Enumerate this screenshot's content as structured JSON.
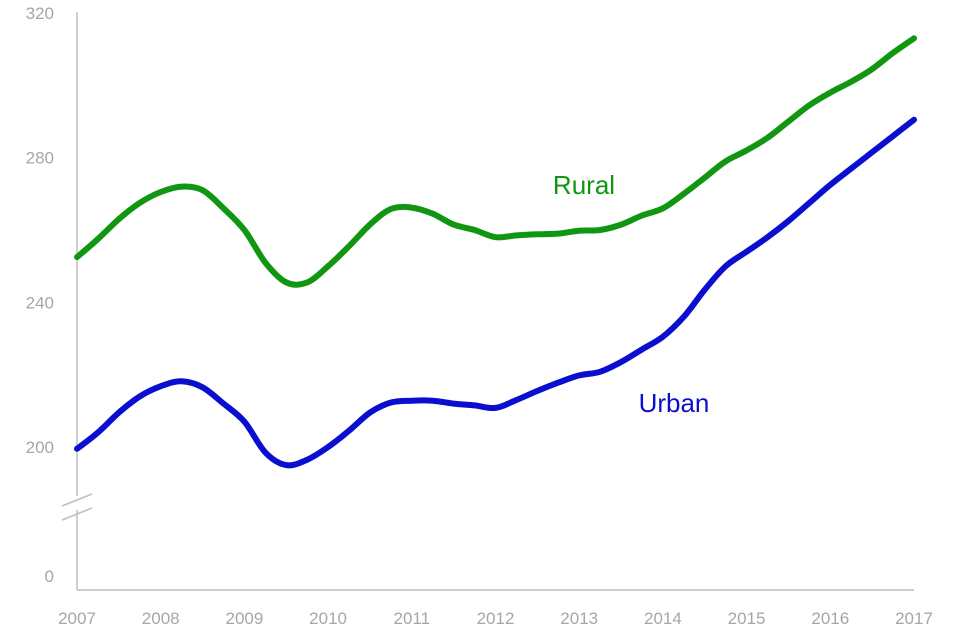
{
  "chart_data": {
    "type": "line",
    "title": "",
    "xlabel": "",
    "ylabel": "",
    "x_ticks": [
      "2007",
      "2008",
      "2009",
      "2010",
      "2011",
      "2012",
      "2013",
      "2014",
      "2015",
      "2016",
      "2017"
    ],
    "y_ticks": [
      "0",
      "200",
      "240",
      "280",
      "320"
    ],
    "ylim": [
      200,
      320
    ],
    "y_axis_break": true,
    "grid": false,
    "legend": "inline labels",
    "series": [
      {
        "name": "Rural",
        "color": "#119611",
        "x": [
          2007.0,
          2007.25,
          2007.5,
          2007.75,
          2008.0,
          2008.25,
          2008.5,
          2008.75,
          2009.0,
          2009.25,
          2009.5,
          2009.75,
          2010.0,
          2010.25,
          2010.5,
          2010.75,
          2011.0,
          2011.25,
          2011.5,
          2011.75,
          2012.0,
          2012.25,
          2012.5,
          2012.75,
          2013.0,
          2013.25,
          2013.5,
          2013.75,
          2014.0,
          2014.25,
          2014.5,
          2014.75,
          2015.0,
          2015.25,
          2015.5,
          2015.75,
          2016.0,
          2016.25,
          2016.5,
          2016.75,
          2017.0
        ],
        "y": [
          252.5,
          257.5,
          263,
          267.5,
          270.5,
          272,
          271,
          266,
          260,
          251,
          245.5,
          245.5,
          250,
          255.5,
          261.5,
          265.8,
          266.2,
          264.5,
          261.5,
          260,
          258,
          258.5,
          258.8,
          259,
          259.8,
          260,
          261.5,
          264,
          266,
          270,
          274.5,
          279,
          282,
          285.5,
          290,
          294.5,
          298,
          301,
          304.5,
          309,
          313
        ]
      },
      {
        "name": "Urban",
        "color": "#0a0fcf",
        "x": [
          2007.0,
          2007.25,
          2007.5,
          2007.75,
          2008.0,
          2008.25,
          2008.5,
          2008.75,
          2009.0,
          2009.25,
          2009.5,
          2009.75,
          2010.0,
          2010.25,
          2010.5,
          2010.75,
          2011.0,
          2011.25,
          2011.5,
          2011.75,
          2012.0,
          2012.25,
          2012.5,
          2012.75,
          2013.0,
          2013.25,
          2013.5,
          2013.75,
          2014.0,
          2014.25,
          2014.5,
          2014.75,
          2015.0,
          2015.25,
          2015.5,
          2015.75,
          2016.0,
          2016.25,
          2016.5,
          2016.75,
          2017.0
        ],
        "y": [
          199.5,
          204,
          209.5,
          214,
          216.8,
          218.2,
          216.5,
          212,
          207,
          198.5,
          195,
          196.5,
          200,
          204.5,
          209.5,
          212.3,
          212.8,
          212.8,
          212,
          211.5,
          210.8,
          213,
          215.5,
          217.8,
          219.8,
          220.8,
          223.5,
          227,
          230.5,
          236,
          243.5,
          250,
          254,
          258,
          262.5,
          267.5,
          272.5,
          277,
          281.5,
          286,
          290.5
        ]
      }
    ]
  }
}
